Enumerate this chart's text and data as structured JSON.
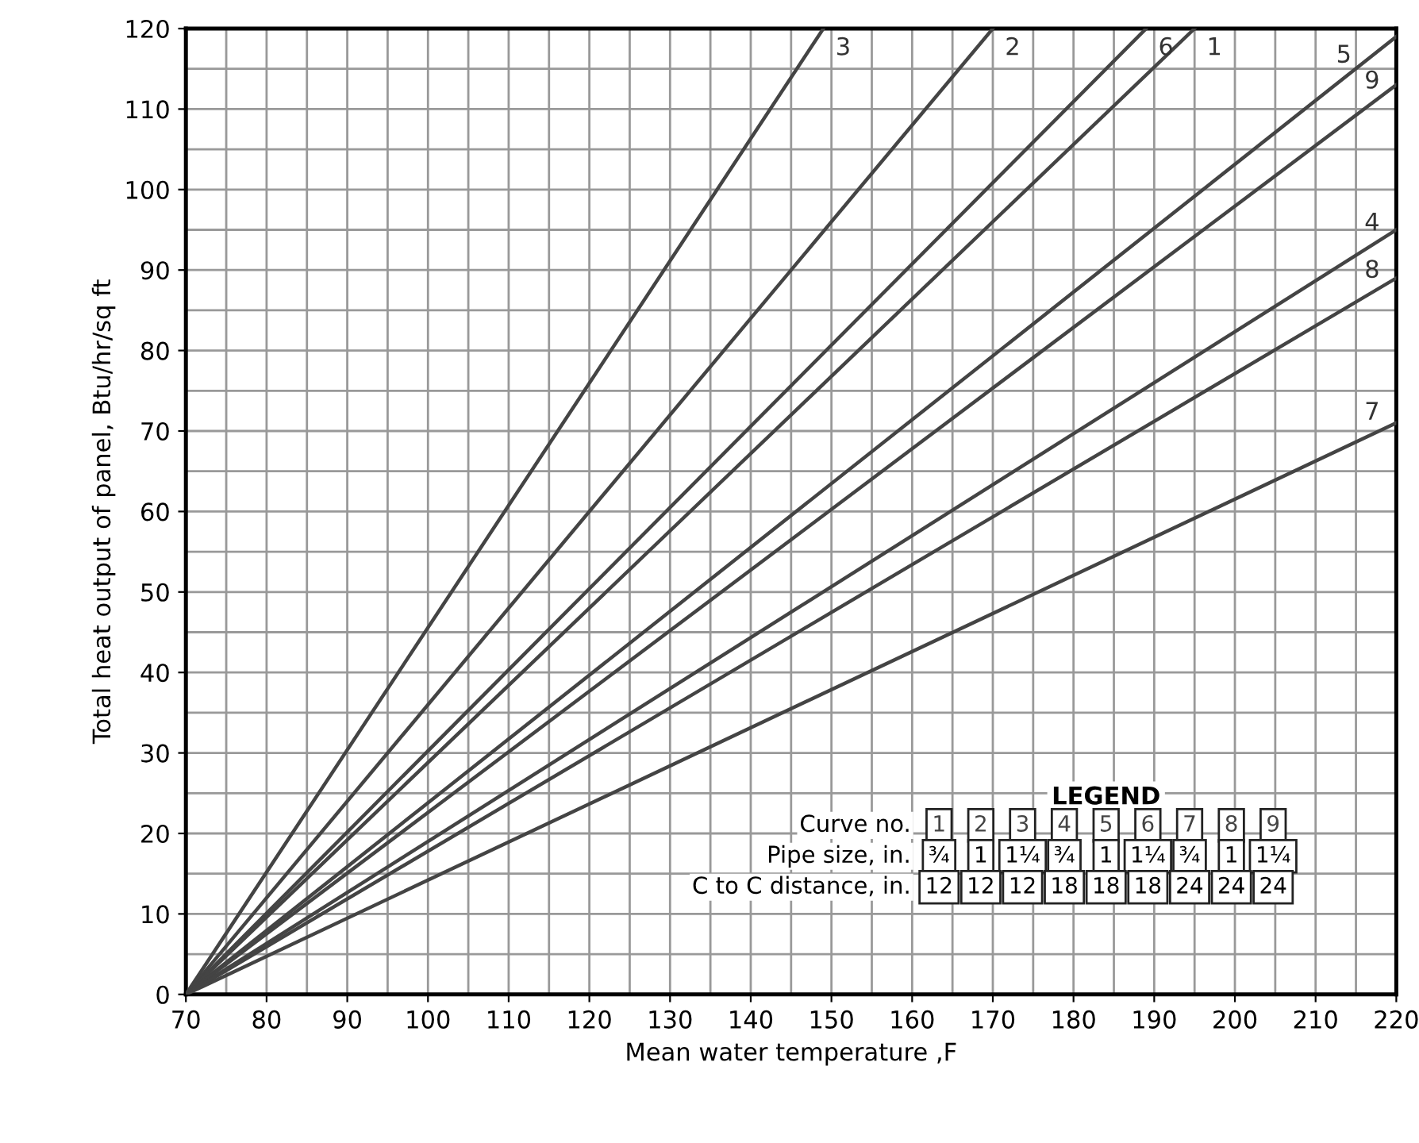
{
  "chart_data": {
    "type": "line",
    "xlabel": "Mean water temperature ,F",
    "ylabel": "Total heat output of panel, Btu/hr/sq ft",
    "xlim": [
      70,
      220
    ],
    "ylim": [
      0,
      120
    ],
    "xticks": [
      70,
      80,
      90,
      100,
      110,
      120,
      130,
      140,
      150,
      160,
      170,
      180,
      190,
      200,
      210,
      220
    ],
    "yticks": [
      0,
      10,
      20,
      30,
      40,
      50,
      60,
      70,
      80,
      90,
      100,
      110,
      120
    ],
    "grid": true,
    "legend": false,
    "marker": "none",
    "line_style": "solid",
    "series": [
      {
        "name": "3",
        "color": "#444444",
        "x": [
          70,
          149
        ],
        "values": [
          0,
          120
        ]
      },
      {
        "name": "2",
        "color": "#444444",
        "x": [
          70,
          170
        ],
        "values": [
          0,
          120
        ]
      },
      {
        "name": "6",
        "color": "#444444",
        "x": [
          70,
          189
        ],
        "values": [
          0,
          120
        ]
      },
      {
        "name": "1",
        "color": "#444444",
        "x": [
          70,
          195
        ],
        "values": [
          0,
          120
        ]
      },
      {
        "name": "5",
        "color": "#444444",
        "x": [
          70,
          220
        ],
        "values": [
          0,
          119
        ]
      },
      {
        "name": "9",
        "color": "#444444",
        "x": [
          70,
          220
        ],
        "values": [
          0,
          113
        ]
      },
      {
        "name": "4",
        "color": "#444444",
        "x": [
          70,
          220
        ],
        "values": [
          0,
          95
        ]
      },
      {
        "name": "8",
        "color": "#444444",
        "x": [
          70,
          220
        ],
        "values": [
          0,
          89
        ]
      },
      {
        "name": "7",
        "color": "#444444",
        "x": [
          70,
          220
        ],
        "values": [
          0,
          71
        ]
      }
    ],
    "annotations": [
      "LEGEND",
      "Curve no.",
      "Pipe size, in.",
      "¾",
      "1",
      "1¼",
      "¾",
      "1",
      "1¼",
      "¾",
      "1",
      "1¼",
      "C to C distance, in.",
      "12",
      "12",
      "12",
      "18",
      "18",
      "18",
      "24",
      "24",
      "24"
    ]
  }
}
